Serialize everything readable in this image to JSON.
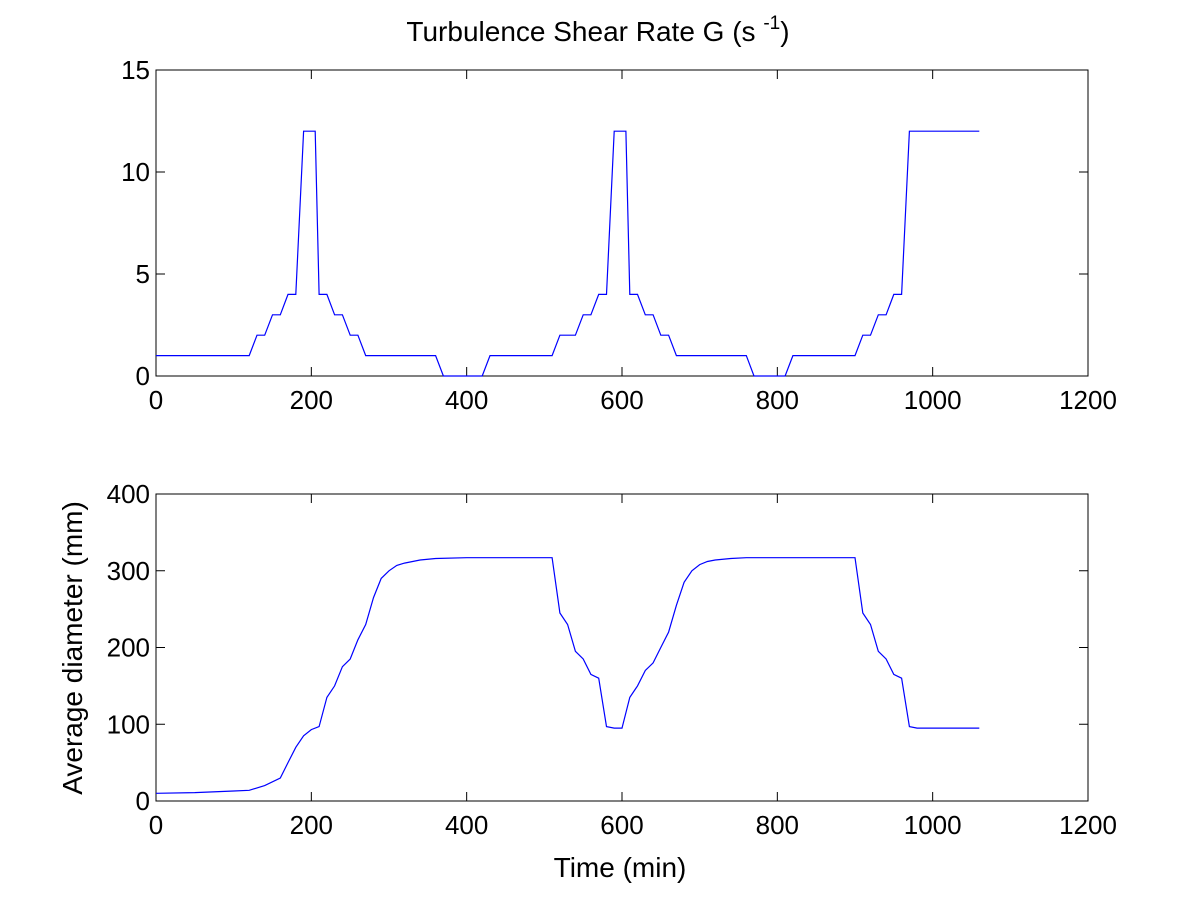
{
  "chart_data": [
    {
      "type": "line",
      "title": "Turbulence Shear Rate G (s ",
      "title_superscript": "-1",
      "title_suffix": ")",
      "xlabel": "",
      "ylabel": "",
      "xlim": [
        0,
        1200
      ],
      "ylim": [
        0,
        15
      ],
      "xticks": [
        "0",
        "200",
        "400",
        "600",
        "800",
        "1000",
        "1200"
      ],
      "yticks": [
        "0",
        "5",
        "10",
        "15"
      ],
      "grid": false,
      "line_color": "#0000ff",
      "series": [
        {
          "x": [
            0,
            120,
            130,
            140,
            140,
            150,
            160,
            160,
            170,
            180,
            180,
            190,
            195,
            205,
            210,
            220,
            220,
            230,
            240,
            240,
            250,
            260,
            260,
            270,
            280,
            300,
            320,
            340,
            360,
            370,
            380,
            390,
            400,
            410,
            420,
            430,
            440,
            460,
            480,
            500,
            510,
            520,
            530,
            540,
            540,
            550,
            560,
            560,
            570,
            580,
            580,
            590,
            595,
            605,
            610,
            620,
            620,
            630,
            640,
            640,
            650,
            660,
            660,
            670,
            680,
            700,
            720,
            740,
            760,
            770,
            780,
            790,
            800,
            810,
            820,
            840,
            860,
            880,
            900,
            910,
            920,
            930,
            940,
            950,
            960,
            970,
            980,
            1000,
            1020,
            1040,
            1060
          ],
          "y": [
            1,
            1,
            2,
            2,
            2,
            3,
            3,
            3,
            4,
            4,
            4,
            12,
            12,
            12,
            4,
            4,
            4,
            3,
            3,
            3,
            2,
            2,
            2,
            1,
            1,
            1,
            1,
            1,
            1,
            0,
            0,
            0,
            0,
            0,
            0,
            1,
            1,
            1,
            1,
            1,
            1,
            2,
            2,
            2,
            2,
            3,
            3,
            3,
            4,
            4,
            4,
            12,
            12,
            12,
            4,
            4,
            4,
            3,
            3,
            3,
            2,
            2,
            2,
            1,
            1,
            1,
            1,
            1,
            1,
            0,
            0,
            0,
            0,
            0,
            1,
            1,
            1,
            1,
            1,
            2,
            2,
            3,
            3,
            4,
            4,
            12,
            12,
            12,
            12,
            12,
            12
          ]
        }
      ]
    },
    {
      "type": "line",
      "title": "",
      "xlabel": "Time (min)",
      "ylabel": "Average diameter (mm)",
      "xlim": [
        0,
        1200
      ],
      "ylim": [
        0,
        400
      ],
      "xticks": [
        "0",
        "200",
        "400",
        "600",
        "800",
        "1000",
        "1200"
      ],
      "yticks": [
        "0",
        "100",
        "200",
        "300",
        "400"
      ],
      "grid": false,
      "line_color": "#0000ff",
      "series": [
        {
          "x": [
            0,
            50,
            100,
            120,
            140,
            160,
            170,
            180,
            190,
            200,
            210,
            220,
            230,
            240,
            250,
            260,
            270,
            280,
            290,
            300,
            310,
            320,
            340,
            360,
            400,
            450,
            510,
            520,
            530,
            540,
            550,
            560,
            570,
            580,
            590,
            600,
            610,
            620,
            630,
            640,
            650,
            660,
            670,
            680,
            690,
            700,
            710,
            720,
            740,
            760,
            800,
            850,
            900,
            910,
            920,
            930,
            940,
            950,
            960,
            970,
            980,
            1000,
            1030,
            1060
          ],
          "y": [
            10,
            11,
            13,
            14,
            20,
            30,
            50,
            70,
            85,
            93,
            97,
            135,
            150,
            175,
            185,
            210,
            230,
            265,
            290,
            300,
            307,
            310,
            314,
            316,
            317,
            317,
            317,
            245,
            230,
            195,
            185,
            165,
            160,
            97,
            95,
            95,
            135,
            150,
            170,
            180,
            200,
            220,
            255,
            285,
            300,
            308,
            312,
            314,
            316,
            317,
            317,
            317,
            317,
            245,
            230,
            195,
            185,
            165,
            160,
            97,
            95,
            95,
            95,
            95
          ]
        }
      ]
    }
  ]
}
